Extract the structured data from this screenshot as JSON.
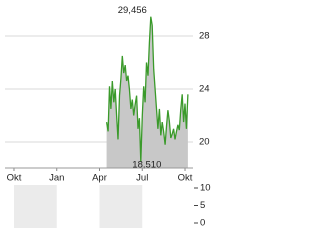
{
  "chart_data": {
    "type": "line",
    "xticks": [
      {
        "value": 0,
        "label": "Okt"
      },
      {
        "value": 3,
        "label": "Jan"
      },
      {
        "value": 6,
        "label": "Apr"
      },
      {
        "value": 9,
        "label": "Jul"
      },
      {
        "value": 12,
        "label": "Okt"
      }
    ],
    "xlim": [
      -0.63,
      12.56
    ],
    "ylim": [
      18.04,
      30.11
    ],
    "yticks": [
      20,
      24,
      28
    ],
    "grid": true,
    "series": [
      {
        "color": "#3a9a2a",
        "fill": "#c8c8c8",
        "x": [
          6.5,
          6.6,
          6.7,
          6.8,
          6.9,
          7.0,
          7.1,
          7.2,
          7.3,
          7.4,
          7.5,
          7.6,
          7.7,
          7.8,
          7.9,
          8.0,
          8.1,
          8.2,
          8.3,
          8.4,
          8.5,
          8.6,
          8.7,
          8.8,
          8.9,
          9.0,
          9.1,
          9.2,
          9.3,
          9.4,
          9.5,
          9.6,
          9.7,
          9.8,
          9.9,
          10.0,
          10.1,
          10.2,
          10.3,
          10.4,
          10.5,
          10.6,
          10.7,
          10.8,
          10.9,
          11.0,
          11.1,
          11.2,
          11.3,
          11.4,
          11.5,
          11.6,
          11.7,
          11.8,
          11.9,
          12.0,
          12.1,
          12.2
        ],
        "values": [
          21.5,
          20.8,
          24.2,
          22.5,
          24.6,
          23.0,
          24.0,
          22.0,
          20.2,
          23.5,
          24.8,
          26.5,
          25.2,
          25.8,
          24.6,
          25.0,
          24.0,
          22.5,
          23.2,
          22.0,
          22.8,
          23.5,
          21.0,
          21.8,
          18.51,
          22.0,
          24.2,
          23.0,
          26.0,
          25.0,
          27.5,
          29.456,
          28.8,
          25.5,
          24.0,
          22.5,
          21.0,
          22.5,
          20.5,
          21.5,
          20.8,
          19.8,
          21.2,
          22.4,
          21.6,
          20.3,
          20.6,
          21.0,
          20.2,
          20.8,
          21.3,
          20.9,
          22.4,
          23.6,
          21.5,
          22.9,
          21.0,
          23.6
        ],
        "value_labels": [
          null,
          null,
          null,
          null,
          null,
          null,
          null,
          null,
          null,
          null,
          null,
          null,
          null,
          null,
          null,
          null,
          null,
          null,
          null,
          null,
          null,
          null,
          null,
          null,
          "18,510",
          null,
          null,
          null,
          null,
          null,
          null,
          "29,456",
          null,
          null,
          null,
          null,
          null,
          null,
          null,
          null,
          null,
          null,
          null,
          null,
          null,
          null,
          null,
          null,
          null,
          null,
          null,
          null,
          null,
          null,
          null,
          null,
          null,
          null
        ]
      }
    ],
    "volume": {
      "ylim": [
        -1.43,
        10.86
      ],
      "yticks": [
        0,
        5,
        10
      ],
      "band_color": "#ebebeb"
    }
  }
}
